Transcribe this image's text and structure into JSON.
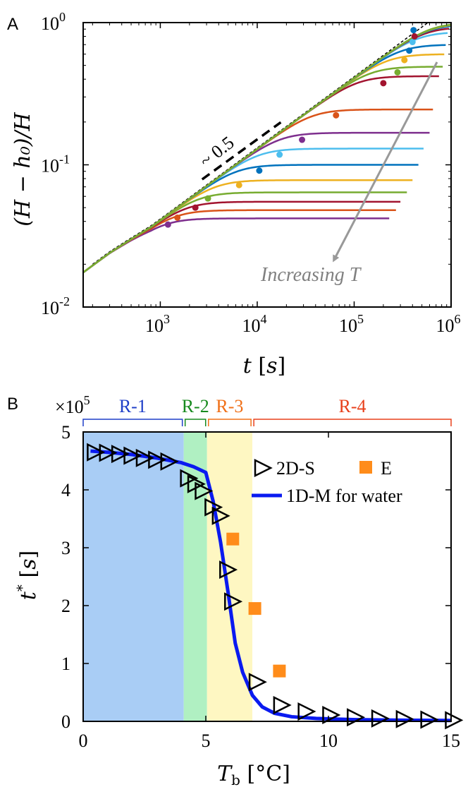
{
  "chart_data": [
    {
      "panel": "A",
      "type": "line",
      "xscale": "log",
      "yscale": "log",
      "xlim": [
        160,
        1000000
      ],
      "ylim": [
        0.01,
        1
      ],
      "x_ticks": [
        1000,
        10000,
        100000,
        1000000
      ],
      "y_ticks": [
        0.01,
        0.1,
        1
      ],
      "x_tick_labels": [
        {
          "base": "10",
          "exp": "3"
        },
        {
          "base": "10",
          "exp": "4"
        },
        {
          "base": "10",
          "exp": "5"
        },
        {
          "base": "10",
          "exp": "6"
        }
      ],
      "y_tick_labels": [
        {
          "base": "10",
          "exp": "-2"
        },
        {
          "base": "10",
          "exp": "-1"
        },
        {
          "base": "10",
          "exp": "0"
        }
      ],
      "xlabel": {
        "var": "t",
        "unit": "s"
      },
      "ylabel": "(H − h₀)/H",
      "slope_label": "~ 0.5",
      "annotation": "Increasing T",
      "early_curve": [
        [
          160,
          0.0175
        ],
        [
          300,
          0.024
        ],
        [
          500,
          0.03
        ],
        [
          800,
          0.0365
        ]
      ],
      "series": [
        {
          "color": "#7E2F8E",
          "plateau": 0.042,
          "t_end": 230000,
          "marker": [
            1200,
            0.038
          ]
        },
        {
          "color": "#D95319",
          "plateau": 0.048,
          "t_end": 270000,
          "marker": [
            1500,
            0.0425
          ]
        },
        {
          "color": "#A2142F",
          "plateau": 0.055,
          "t_end": 300000,
          "marker": [
            2300,
            0.05
          ]
        },
        {
          "color": "#77AC30",
          "plateau": 0.064,
          "t_end": 350000,
          "marker": [
            3100,
            0.058
          ]
        },
        {
          "color": "#EDB120",
          "plateau": 0.078,
          "t_end": 400000,
          "marker": [
            6500,
            0.072
          ]
        },
        {
          "color": "#0072BD",
          "plateau": 0.1,
          "t_end": 460000,
          "marker": [
            10500,
            0.091
          ]
        },
        {
          "color": "#4DBEEE",
          "plateau": 0.13,
          "t_end": 520000,
          "marker": [
            17000,
            0.118
          ]
        },
        {
          "color": "#7E2F8E",
          "plateau": 0.168,
          "t_end": 600000,
          "marker": [
            29000,
            0.15
          ]
        },
        {
          "color": "#D95319",
          "plateau": 0.245,
          "t_end": 650000,
          "marker": [
            65000,
            0.223
          ]
        },
        {
          "color": "#A2142F",
          "plateau": 0.42,
          "t_end": 750000,
          "marker": [
            200000,
            0.375
          ]
        },
        {
          "color": "#77AC30",
          "plateau": 0.49,
          "t_end": 820000,
          "marker": [
            280000,
            0.447
          ]
        },
        {
          "color": "#EDB120",
          "plateau": 0.6,
          "t_end": 850000,
          "marker": [
            330000,
            0.545
          ]
        },
        {
          "color": "#0072BD",
          "plateau": 0.7,
          "t_end": 880000,
          "marker": [
            370000,
            0.635
          ]
        },
        {
          "color": "#4DBEEE",
          "plateau": 0.86,
          "t_end": 920000,
          "marker": [
            400000,
            0.73
          ]
        },
        {
          "color": "#A2142F",
          "plateau": 0.93,
          "t_end": 950000,
          "marker": [
            420000,
            0.8
          ]
        },
        {
          "color": "#0072BD",
          "plateau": 0.97,
          "t_end": 980000,
          "marker": [
            410000,
            0.885
          ]
        },
        {
          "color": "#EDB120",
          "plateau": 0.99,
          "t_end": 1000000,
          "marker": null
        },
        {
          "color": "#77AC30",
          "plateau": 1.0,
          "t_end": 1000000,
          "marker": null
        }
      ]
    },
    {
      "panel": "B",
      "type": "scatter",
      "xlim": [
        0,
        15
      ],
      "ylim": [
        0,
        500000
      ],
      "x_ticks": [
        0,
        5,
        10,
        15
      ],
      "y_ticks": [
        0,
        1,
        2,
        3,
        4,
        5
      ],
      "x_tick_labels": [
        "0",
        "5",
        "10",
        "15"
      ],
      "y_tick_labels": [
        "0",
        "1",
        "2",
        "3",
        "4",
        "5"
      ],
      "y_multiplier": {
        "base": "×10",
        "exp": "5"
      },
      "xlabel": {
        "var": "T",
        "sub": "b",
        "unit": "°C"
      },
      "ylabel": {
        "var": "t",
        "sup": "*",
        "unit": "s"
      },
      "regions": [
        {
          "label": "R-1",
          "x0": 0,
          "x1": 4.1,
          "fill": "#A9CDF5",
          "text_color": "#1F3FC8"
        },
        {
          "label": "R-2",
          "x0": 4.1,
          "x1": 5.05,
          "fill": "#B0F0C2",
          "text_color": "#178A1E"
        },
        {
          "label": "R-3",
          "x0": 5.05,
          "x1": 6.9,
          "fill": "#FEF7C2",
          "text_color": "#F07018"
        },
        {
          "label": "R-4",
          "x0": 6.9,
          "x1": 15,
          "fill": "#FFFFFF",
          "text_color": "#E8401C"
        }
      ],
      "series": [
        {
          "name": "2D-S",
          "marker": "triangle-right",
          "color": "#000000",
          "x": [
            0.5,
            1.0,
            1.5,
            2.0,
            2.5,
            3.0,
            3.5,
            4.3,
            4.6,
            4.9,
            5.3,
            5.6,
            5.9,
            6.1,
            7.1,
            8.1,
            9.1,
            10.1,
            11.1,
            12.1,
            13.1,
            14.1,
            15.1
          ],
          "y": [
            465000,
            464000,
            462000,
            459000,
            455000,
            452000,
            449000,
            420000,
            410000,
            398000,
            370000,
            355000,
            262000,
            207000,
            68000,
            28000,
            17000,
            11000,
            7000,
            5000,
            4000,
            3000,
            2000
          ]
        },
        {
          "name": "E",
          "marker": "square",
          "color": "#FF8C1A",
          "x": [
            6.1,
            7.0,
            8.0
          ],
          "y": [
            315000,
            195000,
            87000
          ]
        },
        {
          "name": "1D-M for water",
          "marker": "line",
          "color": "#0A1AF0",
          "x": [
            0.3,
            1,
            2,
            3,
            4,
            4.5,
            5.0,
            5.3,
            5.6,
            5.9,
            6.2,
            6.5,
            6.9,
            7.3,
            7.8,
            8.5,
            9.5,
            11,
            13,
            15
          ],
          "y": [
            467000,
            465000,
            461000,
            455000,
            447000,
            440000,
            430000,
            380000,
            310000,
            225000,
            135000,
            85000,
            45000,
            25000,
            14000,
            8000,
            5000,
            3000,
            2000,
            1500
          ]
        }
      ]
    }
  ]
}
